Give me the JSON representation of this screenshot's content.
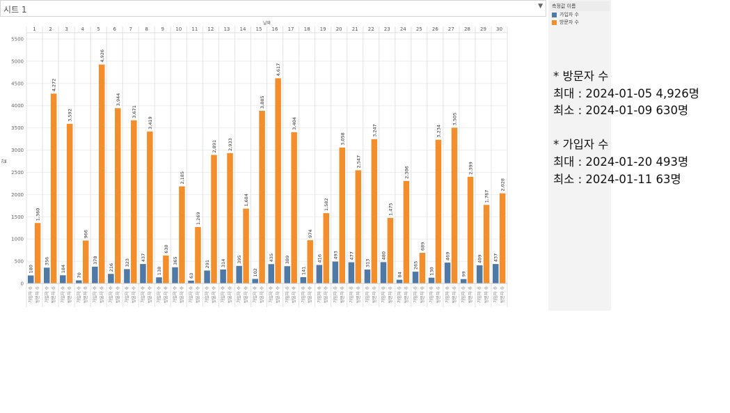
{
  "sheet": {
    "title": "시트 1",
    "dropdown_icon": "chevron-down-icon"
  },
  "legend": {
    "title": "측정값 이름",
    "items": [
      {
        "label": "가입자 수",
        "color": "#4e79a7"
      },
      {
        "label": "방문자 수",
        "color": "#f28e2b"
      }
    ]
  },
  "notes": [
    "* 방문자 수",
    "최대 : 2024-01-05 4,926명",
    "최소 : 2024-01-09 630명",
    "",
    "* 가입자 수",
    "최대 : 2024-01-20 493명",
    "최소 : 2024-01-11 63명"
  ],
  "chart_data": {
    "type": "bar",
    "column_header": "날짜",
    "ylabel": "값",
    "ylim": [
      0,
      5500
    ],
    "yticks": [
      0,
      500,
      1000,
      1500,
      2000,
      2500,
      3000,
      3500,
      4000,
      4500,
      5000,
      5500
    ],
    "categories": [
      "1",
      "2",
      "3",
      "4",
      "5",
      "6",
      "7",
      "8",
      "9",
      "10",
      "11",
      "12",
      "13",
      "14",
      "15",
      "16",
      "17",
      "18",
      "19",
      "20",
      "21",
      "22",
      "23",
      "24",
      "25",
      "26",
      "27",
      "28",
      "29",
      "30"
    ],
    "bar_labels": [
      "가입자 수",
      "방문자 수"
    ],
    "series": [
      {
        "name": "가입자 수",
        "color": "#4e79a7",
        "values": [
          180,
          356,
          184,
          70,
          378,
          216,
          323,
          437,
          138,
          365,
          63,
          291,
          314,
          395,
          102,
          435,
          389,
          141,
          416,
          493,
          477,
          313,
          480,
          84,
          265,
          130,
          469,
          99,
          409,
          437
        ],
        "labels": [
          "180",
          "356",
          "184",
          "70",
          "378",
          "216",
          "323",
          "437",
          "138",
          "365",
          "63",
          "291",
          "314",
          "395",
          "102",
          "435",
          "389",
          "141",
          "416",
          "493",
          "477",
          "313",
          "480",
          "84",
          "265",
          "130",
          "469",
          "99",
          "409",
          "437"
        ]
      },
      {
        "name": "방문자 수",
        "color": "#f28e2b",
        "values": [
          1360,
          4272,
          3592,
          966,
          4926,
          3944,
          3671,
          3419,
          630,
          2185,
          1269,
          2891,
          2933,
          1684,
          3885,
          4617,
          3404,
          974,
          1582,
          3058,
          2547,
          3247,
          1475,
          2306,
          689,
          3234,
          3505,
          2399,
          1767,
          2028
        ],
        "labels": [
          "1,360",
          "4,272",
          "3,592",
          "966",
          "4,926",
          "3,944",
          "3,671",
          "3,419",
          "630",
          "2,185",
          "1,269",
          "2,891",
          "2,933",
          "1,684",
          "3,885",
          "4,617",
          "3,404",
          "974",
          "1,582",
          "3,058",
          "2,547",
          "3,247",
          "1,475",
          "2,306",
          "689",
          "3,234",
          "3,505",
          "2,399",
          "1,767",
          "2,028"
        ]
      }
    ],
    "grid": true,
    "legend_position": "right"
  }
}
